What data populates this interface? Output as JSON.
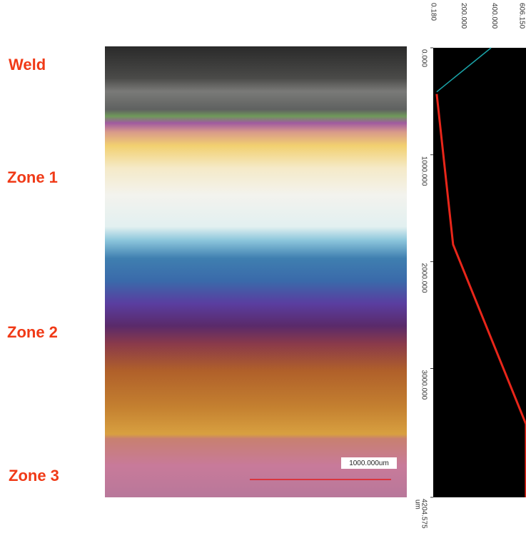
{
  "zones": [
    "Weld",
    "Zone 1",
    "Zone 2",
    "Zone 3"
  ],
  "scale_bar": "1000.000um",
  "chart_data": {
    "type": "line",
    "x_unit": "um",
    "xlim": [
      0,
      4204.575
    ],
    "xticks": [
      {
        "value": 0,
        "label": "0.000"
      },
      {
        "value": 1000,
        "label": "1000.000"
      },
      {
        "value": 2000,
        "label": "2000.000"
      },
      {
        "value": 3000,
        "label": "3000.000"
      },
      {
        "value": 4204.575,
        "label": "4204.575"
      }
    ],
    "ylim": [
      0.18,
      606.15
    ],
    "yticks": [
      {
        "value": 0.18,
        "label": "0.180"
      },
      {
        "value": 200,
        "label": "200.000"
      },
      {
        "value": 400,
        "label": "400.000"
      },
      {
        "value": 606.15,
        "label": "606.150"
      }
    ],
    "series": [
      {
        "color": "#1aa3a8",
        "x": [
          0,
          412
        ],
        "values": [
          378,
          23
        ]
      },
      {
        "color": "#e8261a",
        "x": [
          432,
          1840,
          3520,
          4204.575
        ],
        "values": [
          23,
          130,
          606,
          606
        ]
      }
    ]
  }
}
